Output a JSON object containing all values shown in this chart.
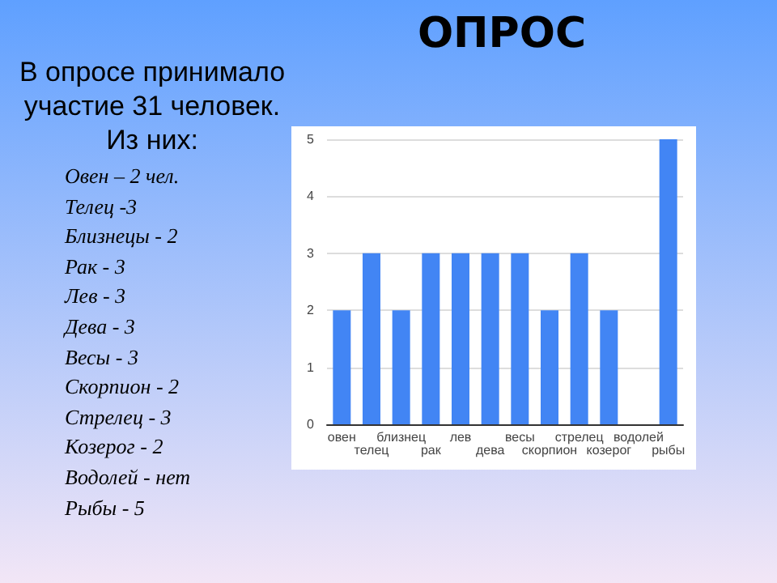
{
  "chart_data": {
    "type": "bar",
    "title": "ОПРОС",
    "annotations": [
      "В опросе принимало участие 31 человек. Из них:",
      "Овен – 2 чел.",
      "Телец -3",
      "Близнецы - 2",
      "Рак - 3",
      "Лев - 3",
      "Дева - 3",
      "Весы - 3",
      "Скорпион - 2",
      "Стрелец - 3",
      "Козерог - 2",
      "Водолей - нет",
      "Рыбы - 5"
    ],
    "categories": [
      "овен",
      "телец",
      "близнец",
      "рак",
      "лев",
      "дева",
      "весы",
      "скорпион",
      "стрелец",
      "козерог",
      "водолей",
      "рыбы"
    ],
    "values": [
      2,
      3,
      2,
      3,
      3,
      3,
      3,
      2,
      3,
      2,
      0,
      5
    ],
    "color": "#4285f4",
    "ylim": [
      0,
      5
    ],
    "yticks": [
      0,
      1,
      2,
      3,
      4,
      5
    ],
    "grid": "y"
  }
}
